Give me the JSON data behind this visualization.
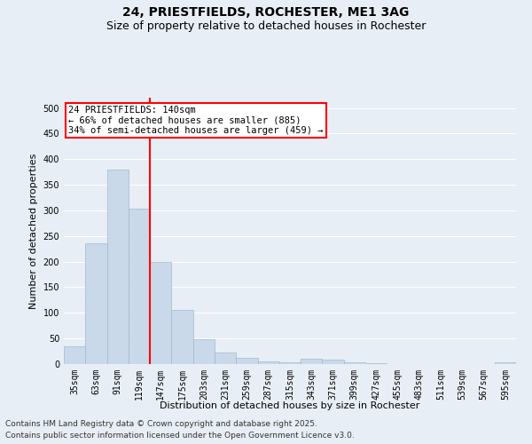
{
  "title_line1": "24, PRIESTFIELDS, ROCHESTER, ME1 3AG",
  "title_line2": "Size of property relative to detached houses in Rochester",
  "xlabel": "Distribution of detached houses by size in Rochester",
  "ylabel": "Number of detached properties",
  "categories": [
    "35sqm",
    "63sqm",
    "91sqm",
    "119sqm",
    "147sqm",
    "175sqm",
    "203sqm",
    "231sqm",
    "259sqm",
    "287sqm",
    "315sqm",
    "343sqm",
    "371sqm",
    "399sqm",
    "427sqm",
    "455sqm",
    "483sqm",
    "511sqm",
    "539sqm",
    "567sqm",
    "595sqm"
  ],
  "values": [
    35,
    235,
    380,
    303,
    200,
    105,
    49,
    22,
    12,
    6,
    4,
    10,
    9,
    4,
    1,
    0,
    0,
    0,
    0,
    0,
    4
  ],
  "bar_color": "#c9d9ea",
  "bar_edge_color": "#a0b8cc",
  "vline_position": 3.5,
  "vline_color": "red",
  "annotation_text": "24 PRIESTFIELDS: 140sqm\n← 66% of detached houses are smaller (885)\n34% of semi-detached houses are larger (459) →",
  "annotation_box_color": "white",
  "annotation_box_edge": "red",
  "ylim": [
    0,
    520
  ],
  "yticks": [
    0,
    50,
    100,
    150,
    200,
    250,
    300,
    350,
    400,
    450,
    500
  ],
  "background_color": "#e8eef5",
  "grid_color": "white",
  "footer_line1": "Contains HM Land Registry data © Crown copyright and database right 2025.",
  "footer_line2": "Contains public sector information licensed under the Open Government Licence v3.0.",
  "title_fontsize": 10,
  "subtitle_fontsize": 9,
  "axis_label_fontsize": 8,
  "tick_fontsize": 7,
  "annotation_fontsize": 7.5,
  "footer_fontsize": 6.5
}
